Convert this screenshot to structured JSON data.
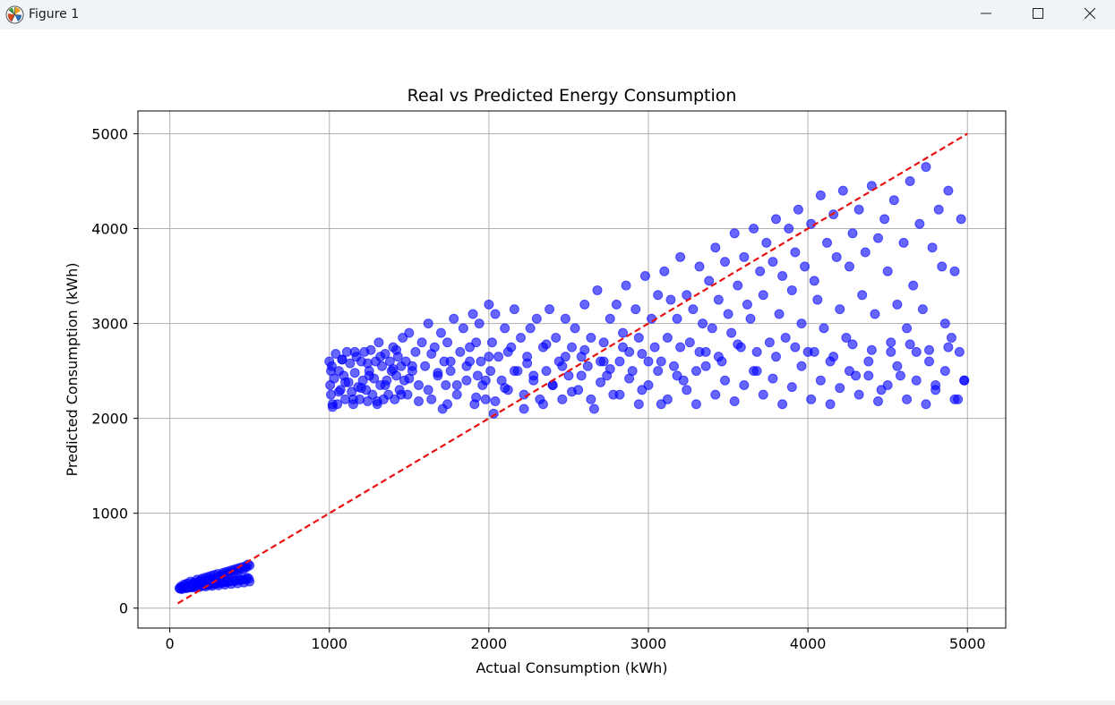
{
  "window": {
    "title": "Figure 1",
    "controls": {
      "minimize": "minimize-icon",
      "maximize": "maximize-icon",
      "close": "close-icon"
    }
  },
  "chart_data": {
    "type": "scatter",
    "title": "Real vs Predicted Energy Consumption",
    "xlabel": "Actual Consumption (kWh)",
    "ylabel": "Predicted Consumption (kWh)",
    "xlim": [
      -200,
      5240
    ],
    "ylim": [
      -210,
      5240
    ],
    "xticks": [
      0,
      1000,
      2000,
      3000,
      4000,
      5000
    ],
    "yticks": [
      0,
      1000,
      2000,
      3000,
      4000,
      5000
    ],
    "xtick_labels": [
      "0",
      "1000",
      "2000",
      "3000",
      "4000",
      "5000"
    ],
    "ytick_labels": [
      "0",
      "1000",
      "2000",
      "3000",
      "4000",
      "5000"
    ],
    "grid": true,
    "colors": {
      "points": "#0000ff",
      "reference_line": "#e81010"
    },
    "reference_line": {
      "style": "dashed",
      "x": [
        50,
        5000
      ],
      "y": [
        50,
        5000
      ]
    },
    "series": [
      {
        "x": [
          1000,
          1005,
          1010,
          1015,
          1020,
          1030,
          1040,
          1050,
          1060,
          1070,
          1080,
          1090,
          1100,
          1110,
          1120,
          1130,
          1140,
          1150,
          1160,
          1170,
          1180,
          1190,
          1200,
          1210,
          1220,
          1230,
          1240,
          1250,
          1260,
          1270,
          1280,
          1290,
          1300,
          1310,
          1320,
          1330,
          1340,
          1350,
          1360,
          1370,
          1380,
          1390,
          1400,
          1410,
          1420,
          1430,
          1440,
          1450,
          1460,
          1470,
          1480,
          1490,
          1500,
          1520,
          1540,
          1560,
          1580,
          1600,
          1620,
          1640,
          1660,
          1680,
          1700,
          1710,
          1720,
          1730,
          1740,
          1760,
          1780,
          1800,
          1820,
          1840,
          1860,
          1880,
          1900,
          1910,
          1920,
          1930,
          1940,
          1950,
          1960,
          1980,
          2000,
          2010,
          2020,
          2030,
          2040,
          2060,
          2080,
          2100,
          2120,
          2140,
          2160,
          2180,
          2200,
          2220,
          2240,
          2260,
          2280,
          2300,
          2320,
          2340,
          2360,
          2380,
          2400,
          2420,
          2440,
          2460,
          2480,
          2500,
          2520,
          2540,
          2560,
          2580,
          2600,
          2620,
          2640,
          2660,
          2680,
          2700,
          2720,
          2740,
          2760,
          2780,
          2800,
          2820,
          2840,
          2860,
          2880,
          2900,
          2920,
          2940,
          2960,
          2980,
          3000,
          3020,
          3040,
          3060,
          3080,
          3100,
          3120,
          3140,
          3160,
          3180,
          3200,
          3220,
          3240,
          3260,
          3280,
          3300,
          3320,
          3340,
          3360,
          3380,
          3400,
          3420,
          3440,
          3460,
          3480,
          3500,
          3520,
          3540,
          3560,
          3580,
          3600,
          3620,
          3640,
          3660,
          3680,
          3700,
          3720,
          3740,
          3760,
          3780,
          3800,
          3820,
          3840,
          3860,
          3880,
          3900,
          3920,
          3940,
          3960,
          3980,
          4000,
          4020,
          4040,
          4060,
          4080,
          4100,
          4120,
          4140,
          4160,
          4180,
          4200,
          4220,
          4240,
          4260,
          4280,
          4300,
          4320,
          4340,
          4360,
          4380,
          4400,
          4420,
          4440,
          4460,
          4480,
          4500,
          4520,
          4540,
          4560,
          4580,
          4600,
          4620,
          4640,
          4660,
          4680,
          4700,
          4720,
          4740,
          4760,
          4780,
          4800,
          4820,
          4840,
          4860,
          4880,
          4900,
          4920,
          4940,
          4960,
          4980,
          1020,
          1060,
          1100,
          1150,
          1200,
          1250,
          1300,
          1350,
          1400,
          1450,
          1500,
          1560,
          1620,
          1680,
          1740,
          1800,
          1860,
          1920,
          1980,
          2040,
          2100,
          2160,
          2220,
          2280,
          2340,
          2400,
          2460,
          2520,
          2580,
          2640,
          2700,
          2760,
          2820,
          2880,
          2940,
          3000,
          3060,
          3120,
          3180,
          3240,
          3300,
          3360,
          3420,
          3480,
          3540,
          3600,
          3660,
          3720,
          3780,
          3840,
          3900,
          3960,
          4020,
          4080,
          4140,
          4200,
          4260,
          4320,
          4380,
          4440,
          4500,
          4560,
          4620,
          4680,
          4740,
          4800,
          4860,
          4920,
          4980,
          1010,
          1080,
          1160,
          1240,
          1320,
          1420,
          1520,
          1640,
          1760,
          1880,
          2000,
          2120,
          2240,
          2360,
          2480,
          2600,
          2720,
          2840,
          2960,
          3080,
          3200,
          3320,
          3440,
          3560,
          3680,
          3800,
          3920,
          4040,
          4160,
          4280,
          4400,
          4520,
          4640,
          4760,
          4880,
          4950,
          60,
          70,
          80,
          90,
          100,
          110,
          120,
          130,
          140,
          150,
          160,
          170,
          180,
          190,
          200,
          210,
          220,
          230,
          240,
          250,
          260,
          270,
          280,
          290,
          300,
          310,
          320,
          330,
          340,
          350,
          360,
          370,
          380,
          390,
          400,
          410,
          420,
          430,
          440,
          450,
          460,
          470,
          480,
          490,
          500,
          75,
          95,
          115,
          135,
          155,
          175,
          195,
          215,
          235,
          255,
          275,
          295,
          315,
          335,
          355,
          375,
          395,
          415,
          435,
          455,
          475,
          495,
          85,
          125,
          165,
          205,
          245,
          285,
          325,
          365,
          405,
          445,
          485,
          65,
          105,
          145,
          185,
          225,
          265,
          305,
          345,
          385,
          425,
          465,
          500
        ],
        "y": [
          2600,
          2350,
          2250,
          2550,
          2120,
          2420,
          2680,
          2150,
          2500,
          2300,
          2620,
          2450,
          2200,
          2700,
          2380,
          2580,
          2280,
          2150,
          2480,
          2650,
          2330,
          2200,
          2600,
          2400,
          2700,
          2300,
          2180,
          2500,
          2720,
          2250,
          2420,
          2600,
          2150,
          2800,
          2350,
          2550,
          2200,
          2680,
          2400,
          2250,
          2600,
          2500,
          2750,
          2200,
          2450,
          2650,
          2300,
          2550,
          2850,
          2400,
          2600,
          2250,
          2900,
          2500,
          2700,
          2350,
          2800,
          2550,
          3000,
          2200,
          2750,
          2450,
          2900,
          2100,
          2600,
          2350,
          2800,
          2500,
          3050,
          2250,
          2700,
          2950,
          2400,
          2600,
          3100,
          2150,
          2800,
          2450,
          3000,
          2600,
          2350,
          2200,
          3200,
          2500,
          2800,
          2050,
          3100,
          2650,
          2400,
          2950,
          2300,
          2750,
          3150,
          2500,
          2850,
          2100,
          2650,
          2950,
          2400,
          3050,
          2200,
          2750,
          2500,
          3150,
          2350,
          2850,
          2600,
          2200,
          3050,
          2450,
          2750,
          2950,
          2300,
          2650,
          3200,
          2550,
          2850,
          2100,
          3350,
          2600,
          2800,
          2450,
          3050,
          2250,
          3200,
          2600,
          2900,
          3400,
          2700,
          2500,
          3150,
          2850,
          2300,
          3500,
          2600,
          3050,
          2750,
          3300,
          2150,
          3550,
          2850,
          3250,
          2550,
          3050,
          3700,
          2400,
          3300,
          2800,
          3150,
          2500,
          3600,
          3000,
          2700,
          3450,
          2950,
          3800,
          3250,
          2600,
          3650,
          3100,
          2900,
          3950,
          3400,
          2750,
          3700,
          3200,
          3050,
          4000,
          2500,
          3550,
          3300,
          3850,
          2800,
          3650,
          4100,
          3100,
          3500,
          2850,
          4000,
          3350,
          3750,
          4200,
          3000,
          3600,
          2700,
          4050,
          3450,
          3250,
          4350,
          2950,
          3850,
          2600,
          4150,
          3700,
          3150,
          4400,
          2850,
          3600,
          3950,
          2450,
          4200,
          3300,
          3750,
          2600,
          4450,
          3100,
          3900,
          2300,
          4100,
          3550,
          2800,
          4300,
          3200,
          2450,
          3850,
          2950,
          4500,
          3400,
          2700,
          4050,
          3150,
          4650,
          2600,
          3800,
          2350,
          4200,
          3600,
          3000,
          4400,
          2850,
          3550,
          2200,
          4100,
          2400,
          2150,
          2280,
          2380,
          2200,
          2320,
          2450,
          2180,
          2350,
          2520,
          2250,
          2420,
          2180,
          2300,
          2480,
          2150,
          2350,
          2550,
          2220,
          2400,
          2180,
          2320,
          2500,
          2250,
          2450,
          2150,
          2350,
          2550,
          2280,
          2450,
          2200,
          2380,
          2520,
          2250,
          2420,
          2150,
          2350,
          2500,
          2200,
          2450,
          2300,
          2150,
          2550,
          2250,
          2400,
          2180,
          2350,
          2500,
          2250,
          2420,
          2150,
          2330,
          2550,
          2200,
          2400,
          2150,
          2320,
          2500,
          2250,
          2450,
          2180,
          2350,
          2550,
          2200,
          2400,
          2150,
          2300,
          2500,
          2200,
          2400,
          2500,
          2620,
          2700,
          2580,
          2650,
          2720,
          2550,
          2680,
          2600,
          2750,
          2650,
          2700,
          2580,
          2780,
          2650,
          2720,
          2600,
          2750,
          2680,
          2600,
          2750,
          2700,
          2650,
          2780,
          2700,
          2650,
          2750,
          2700,
          2650,
          2780,
          2720,
          2700,
          2780,
          2720,
          2750,
          2700,
          210,
          230,
          220,
          250,
          240,
          260,
          230,
          280,
          250,
          270,
          260,
          300,
          280,
          290,
          310,
          270,
          320,
          300,
          330,
          310,
          340,
          290,
          350,
          320,
          360,
          330,
          340,
          370,
          350,
          380,
          360,
          390,
          370,
          400,
          380,
          410,
          390,
          420,
          400,
          430,
          410,
          440,
          430,
          460,
          450,
          200,
          210,
          215,
          220,
          225,
          230,
          235,
          240,
          245,
          250,
          255,
          260,
          265,
          270,
          275,
          280,
          285,
          290,
          295,
          300,
          305,
          310,
          215,
          225,
          235,
          240,
          250,
          260,
          270,
          280,
          290,
          300,
          320,
          205,
          212,
          218,
          222,
          228,
          235,
          240,
          248,
          255,
          262,
          270,
          280
        ]
      }
    ]
  }
}
